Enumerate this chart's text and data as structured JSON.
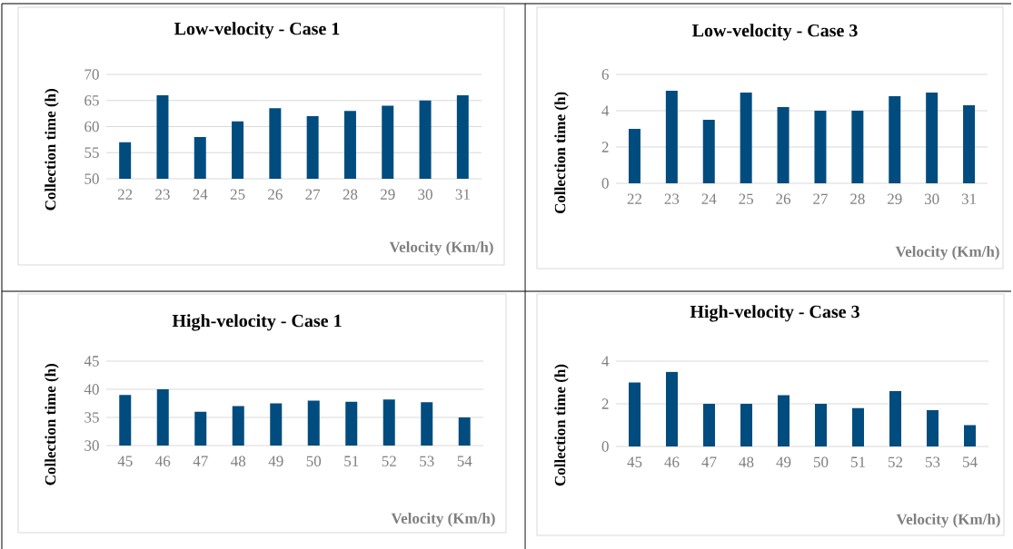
{
  "chart_data": [
    {
      "type": "bar",
      "title": "Low-velocity -  Case 1",
      "xlabel": "Velocity (Km/h)",
      "ylabel": "Collection time (h)",
      "categories": [
        "22",
        "23",
        "24",
        "25",
        "26",
        "27",
        "28",
        "29",
        "30",
        "31"
      ],
      "values": [
        57,
        66,
        58,
        61,
        63.5,
        62,
        63,
        64,
        65,
        66
      ],
      "color": "#004c7f",
      "ylim": [
        50,
        70
      ],
      "yticks": [
        50,
        55,
        60,
        65,
        70
      ],
      "grid": "y"
    },
    {
      "type": "bar",
      "title": "Low-velocity - Case 3",
      "xlabel": "Velocity (Km/h)",
      "ylabel": "Collection time (h)",
      "categories": [
        "22",
        "23",
        "24",
        "25",
        "26",
        "27",
        "28",
        "29",
        "30",
        "31"
      ],
      "values": [
        3,
        5.1,
        3.5,
        5,
        4.2,
        4,
        4,
        4.8,
        5,
        4.3
      ],
      "color": "#004c7f",
      "ylim": [
        0,
        6
      ],
      "yticks": [
        0,
        2,
        4,
        6
      ],
      "grid": "y"
    },
    {
      "type": "bar",
      "title": "High-velocity - Case 1",
      "xlabel": "Velocity (Km/h)",
      "ylabel": "Collection time (h)",
      "categories": [
        "45",
        "46",
        "47",
        "48",
        "49",
        "50",
        "51",
        "52",
        "53",
        "54"
      ],
      "values": [
        39,
        40,
        36,
        37,
        37.5,
        38,
        37.8,
        38.2,
        37.7,
        35
      ],
      "color": "#004c7f",
      "ylim": [
        30,
        45
      ],
      "yticks": [
        30,
        35,
        40,
        45
      ],
      "grid": "y"
    },
    {
      "type": "bar",
      "title": "High-velocity - Case 3",
      "xlabel": "Velocity (Km/h)",
      "ylabel": "Collection time (h)",
      "categories": [
        "45",
        "46",
        "47",
        "48",
        "49",
        "50",
        "51",
        "52",
        "53",
        "54"
      ],
      "values": [
        3,
        3.5,
        2,
        2,
        2.4,
        2,
        1.8,
        2.6,
        1.7,
        1
      ],
      "color": "#004c7f",
      "ylim": [
        0,
        4
      ],
      "yticks": [
        0,
        2,
        4
      ],
      "grid": "y"
    }
  ]
}
